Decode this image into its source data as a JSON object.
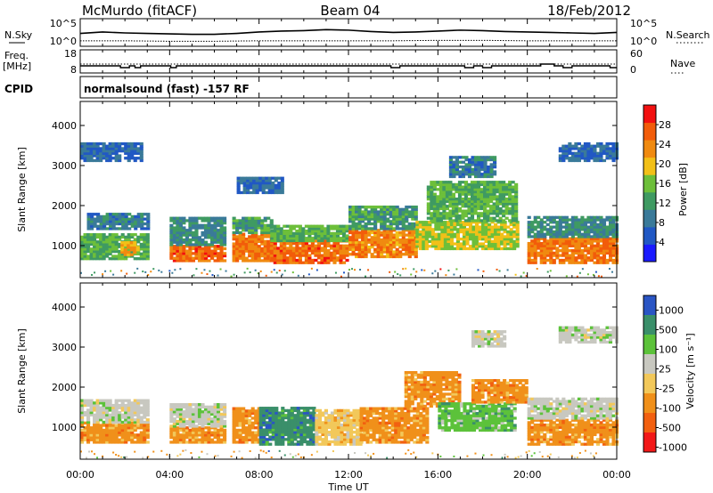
{
  "chart_data": [
    {
      "type": "line",
      "panel": "noise",
      "header": {
        "station": "McMurdo (fitACF)",
        "beam": "Beam 04",
        "date": "18/Feb/2012"
      },
      "left_label": "N.Sky",
      "right_label": "N.Search",
      "ytick_left": [
        "10^5",
        "10^0"
      ],
      "ytick_right": [
        "10^5",
        "10^0"
      ],
      "series": [
        {
          "name": "N.Sky",
          "style": "solid",
          "x": [
            0,
            1,
            2,
            3,
            4,
            5,
            6,
            7,
            8,
            9,
            10,
            11,
            12,
            13,
            14,
            15,
            16,
            17,
            18,
            19,
            20,
            21,
            22,
            23,
            24
          ],
          "values": [
            2.4,
            2.7,
            2.5,
            2.4,
            2.3,
            2.2,
            2.2,
            2.4,
            2.7,
            2.9,
            3.0,
            3.2,
            3.1,
            2.8,
            2.6,
            2.7,
            2.9,
            3.1,
            3.0,
            2.8,
            2.7,
            2.6,
            2.5,
            2.4,
            2.6
          ]
        },
        {
          "name": "N.Search",
          "style": "dotted",
          "x": [
            0,
            2,
            4,
            6,
            8,
            10,
            12,
            14,
            16,
            18,
            20,
            22,
            24
          ],
          "values": [
            0.8,
            0.8,
            0.7,
            0.7,
            0.8,
            0.8,
            0.8,
            0.8,
            0.9,
            0.9,
            0.8,
            0.8,
            0.8
          ]
        }
      ]
    },
    {
      "type": "line",
      "panel": "frequency",
      "left_label_lines": [
        "Freq.",
        "[MHz]"
      ],
      "right_label": "Nave",
      "ytick_left": [
        "18",
        "8"
      ],
      "ytick_right": [
        "60",
        "0"
      ],
      "series": [
        {
          "name": "Freq.",
          "style": "solid",
          "x": [
            0,
            1.8,
            1.8,
            2.2,
            2.2,
            2.45,
            2.45,
            2.7,
            2.7,
            4.05,
            4.05,
            4.3,
            4.3,
            13.9,
            13.9,
            14.3,
            14.3,
            17.2,
            17.2,
            17.6,
            17.6,
            18.0,
            18.0,
            18.4,
            18.4,
            20.6,
            20.6,
            21.2,
            21.2,
            21.6,
            21.6,
            22.0,
            22.0,
            23.7,
            23.7,
            24
          ],
          "values": [
            11,
            11,
            10,
            10,
            11,
            11,
            10,
            10,
            11,
            11,
            10,
            10,
            11,
            11,
            10,
            10,
            11,
            11,
            10,
            10,
            11,
            11,
            10,
            10,
            11,
            11,
            12,
            12,
            11,
            11,
            10,
            10,
            11,
            11,
            10,
            10
          ]
        },
        {
          "name": "Nave",
          "style": "dotted",
          "x": [
            0,
            24
          ],
          "values": [
            12,
            12
          ]
        }
      ]
    },
    {
      "type": "text",
      "panel": "cpid",
      "label": "CPID",
      "text": "normalsound (fast) -157 RF"
    },
    {
      "type": "heatmap",
      "panel": "power",
      "ylabel": "Slant Range [km]",
      "yticks": [
        1000,
        2000,
        3000,
        4000
      ],
      "ylim": [
        200,
        4600
      ],
      "xlim": [
        0,
        24
      ],
      "colorbar": {
        "label": "Power [dB]",
        "ticks": [
          4,
          8,
          12,
          16,
          20,
          24,
          28
        ],
        "range": [
          0,
          32
        ],
        "colors": [
          "#1a1aff",
          "#2158c4",
          "#3a7a99",
          "#3f9a62",
          "#6dbf3a",
          "#f2c018",
          "#f08a10",
          "#f25c0a",
          "#f21010"
        ]
      },
      "bands": [
        {
          "t0": 0.0,
          "t1": 3.0,
          "r0": 650,
          "r1": 1300,
          "level": 14
        },
        {
          "t0": 0.3,
          "t1": 3.0,
          "r0": 1400,
          "r1": 1800,
          "level": 8
        },
        {
          "t0": 1.8,
          "t1": 2.6,
          "r0": 750,
          "r1": 1100,
          "level": 22
        },
        {
          "t0": 4.0,
          "t1": 6.5,
          "r0": 600,
          "r1": 1000,
          "level": 27
        },
        {
          "t0": 4.0,
          "t1": 6.5,
          "r0": 1000,
          "r1": 1700,
          "level": 10
        },
        {
          "t0": 6.8,
          "t1": 8.5,
          "r0": 600,
          "r1": 1300,
          "level": 26
        },
        {
          "t0": 6.8,
          "t1": 8.5,
          "r0": 1300,
          "r1": 1700,
          "level": 12
        },
        {
          "t0": 8.5,
          "t1": 12.0,
          "r0": 550,
          "r1": 1100,
          "level": 27
        },
        {
          "t0": 8.5,
          "t1": 12.0,
          "r0": 1100,
          "r1": 1500,
          "level": 14
        },
        {
          "t0": 12.0,
          "t1": 15.0,
          "r0": 700,
          "r1": 1400,
          "level": 25
        },
        {
          "t0": 12.0,
          "t1": 15.0,
          "r0": 1400,
          "r1": 2000,
          "level": 12
        },
        {
          "t0": 15.0,
          "t1": 19.5,
          "r0": 900,
          "r1": 1600,
          "level": 18
        },
        {
          "t0": 15.5,
          "t1": 19.5,
          "r0": 1600,
          "r1": 2600,
          "level": 14
        },
        {
          "t0": 20.0,
          "t1": 24.0,
          "r0": 550,
          "r1": 1200,
          "level": 26
        },
        {
          "t0": 20.0,
          "t1": 24.0,
          "r0": 1200,
          "r1": 1700,
          "level": 10
        },
        {
          "t0": 0.0,
          "t1": 2.8,
          "r0": 3100,
          "r1": 3550,
          "level": 6
        },
        {
          "t0": 21.4,
          "t1": 24.0,
          "r0": 3100,
          "r1": 3550,
          "level": 6
        },
        {
          "t0": 16.5,
          "t1": 18.5,
          "r0": 2700,
          "r1": 3200,
          "level": 8
        },
        {
          "t0": 7.0,
          "t1": 9.0,
          "r0": 2300,
          "r1": 2700,
          "level": 6
        }
      ]
    },
    {
      "type": "heatmap",
      "panel": "velocity",
      "ylabel": "Slant Range [km]",
      "yticks": [
        1000,
        2000,
        3000,
        4000
      ],
      "ylim": [
        200,
        4600
      ],
      "xlim": [
        0,
        24
      ],
      "xlabel": "Time UT",
      "xticks": [
        "00:00",
        "04:00",
        "08:00",
        "12:00",
        "16:00",
        "20:00",
        "00:00"
      ],
      "colorbar": {
        "label": "Velocity [m s⁻¹]",
        "ticks": [
          1000,
          500,
          100,
          25,
          -25,
          -100,
          -500,
          -1000
        ],
        "colors_top_to_bottom": [
          "#2a55c4",
          "#3a8f6a",
          "#5cc23a",
          "#c8c8c0",
          "#f2c85a",
          "#f0901a",
          "#f26010",
          "#f21818"
        ]
      },
      "bands": [
        {
          "t0": 0.0,
          "t1": 3.0,
          "r0": 600,
          "r1": 1100,
          "color_index": 5
        },
        {
          "t0": 0.0,
          "t1": 3.0,
          "r0": 1100,
          "r1": 1700,
          "color_index": 3
        },
        {
          "t0": 4.0,
          "t1": 6.5,
          "r0": 600,
          "r1": 1000,
          "color_index": 5
        },
        {
          "t0": 4.0,
          "t1": 6.5,
          "r0": 1000,
          "r1": 1600,
          "color_index": 3
        },
        {
          "t0": 6.8,
          "t1": 8.0,
          "r0": 600,
          "r1": 1500,
          "color_index": 5
        },
        {
          "t0": 8.0,
          "t1": 10.5,
          "r0": 550,
          "r1": 1500,
          "color_index": 1
        },
        {
          "t0": 10.5,
          "t1": 12.5,
          "r0": 550,
          "r1": 1400,
          "color_index": 4
        },
        {
          "t0": 12.5,
          "t1": 15.5,
          "r0": 600,
          "r1": 1500,
          "color_index": 5
        },
        {
          "t0": 14.5,
          "t1": 17.0,
          "r0": 1500,
          "r1": 2400,
          "color_index": 5
        },
        {
          "t0": 16.0,
          "t1": 19.5,
          "r0": 900,
          "r1": 1600,
          "color_index": 2
        },
        {
          "t0": 17.5,
          "t1": 20.0,
          "r0": 1600,
          "r1": 2200,
          "color_index": 5
        },
        {
          "t0": 20.0,
          "t1": 24.0,
          "r0": 550,
          "r1": 1200,
          "color_index": 5
        },
        {
          "t0": 20.0,
          "t1": 24.0,
          "r0": 1200,
          "r1": 1700,
          "color_index": 3
        },
        {
          "t0": 21.4,
          "t1": 24.0,
          "r0": 3100,
          "r1": 3500,
          "color_index": 3
        },
        {
          "t0": 17.5,
          "t1": 19.0,
          "r0": 3000,
          "r1": 3400,
          "color_index": 3
        }
      ]
    }
  ]
}
